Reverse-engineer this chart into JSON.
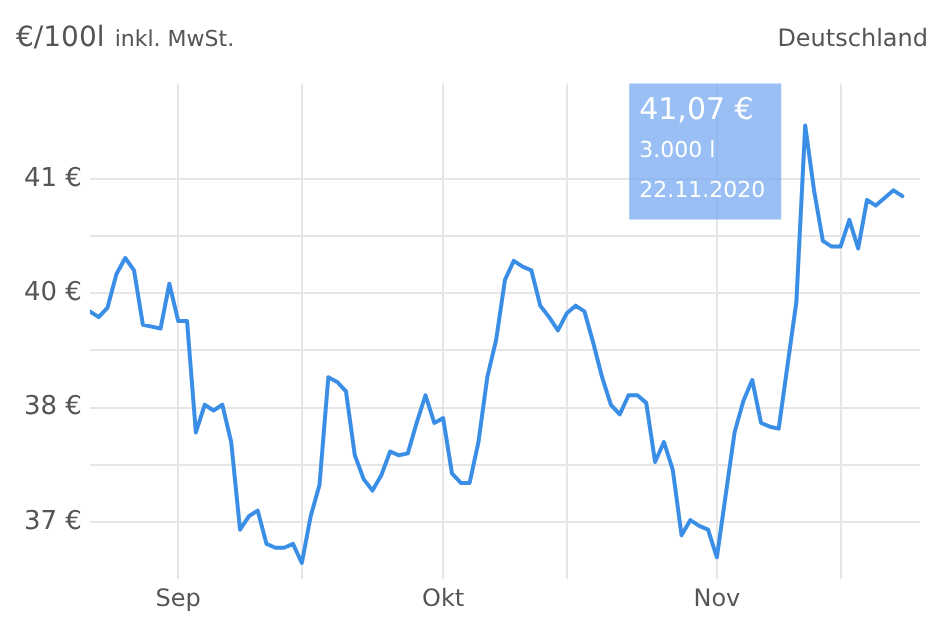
{
  "chart_data": {
    "type": "line",
    "ylabel": "€/100l",
    "subtitle": "inkl. MwSt.",
    "annotations": [
      "Deutschland",
      "41,07 €",
      "3.000 l",
      "22.11.2020"
    ],
    "x": [
      "2020-08-22",
      "2020-08-23",
      "2020-08-24",
      "2020-08-25",
      "2020-08-26",
      "2020-08-27",
      "2020-08-28",
      "2020-08-29",
      "2020-08-30",
      "2020-08-31",
      "2020-09-01",
      "2020-09-02",
      "2020-09-03",
      "2020-09-04",
      "2020-09-05",
      "2020-09-06",
      "2020-09-07",
      "2020-09-08",
      "2020-09-09",
      "2020-09-10",
      "2020-09-11",
      "2020-09-12",
      "2020-09-13",
      "2020-09-14",
      "2020-09-15",
      "2020-09-16",
      "2020-09-17",
      "2020-09-18",
      "2020-09-19",
      "2020-09-20",
      "2020-09-21",
      "2020-09-22",
      "2020-09-23",
      "2020-09-24",
      "2020-09-25",
      "2020-09-26",
      "2020-09-27",
      "2020-09-28",
      "2020-09-29",
      "2020-09-30",
      "2020-10-01",
      "2020-10-02",
      "2020-10-03",
      "2020-10-04",
      "2020-10-05",
      "2020-10-06",
      "2020-10-07",
      "2020-10-08",
      "2020-10-09",
      "2020-10-10",
      "2020-10-11",
      "2020-10-12",
      "2020-10-13",
      "2020-10-14",
      "2020-10-15",
      "2020-10-16",
      "2020-10-17",
      "2020-10-18",
      "2020-10-19",
      "2020-10-20",
      "2020-10-21",
      "2020-10-22",
      "2020-10-23",
      "2020-10-24",
      "2020-10-25",
      "2020-10-26",
      "2020-10-27",
      "2020-10-28",
      "2020-10-29",
      "2020-10-30",
      "2020-10-31",
      "2020-11-01",
      "2020-11-03",
      "2020-11-04",
      "2020-11-05",
      "2020-11-06",
      "2020-11-07",
      "2020-11-08",
      "2020-11-10",
      "2020-11-11",
      "2020-11-12",
      "2020-11-13",
      "2020-11-14",
      "2020-11-15",
      "2020-11-16",
      "2020-11-17",
      "2020-11-18",
      "2020-11-19",
      "2020-11-21",
      "2020-11-22"
    ],
    "series": [
      {
        "color": "#3a8ee6",
        "values": [
          39.41,
          39.35,
          39.45,
          39.8,
          39.97,
          39.84,
          39.27,
          39.25,
          39.23,
          39.7,
          39.31,
          39.31,
          38.14,
          38.43,
          38.37,
          38.43,
          38.04,
          37.12,
          37.26,
          37.32,
          36.97,
          36.93,
          36.93,
          36.97,
          36.77,
          37.26,
          37.59,
          38.72,
          38.67,
          38.57,
          37.9,
          37.65,
          37.53,
          37.69,
          37.94,
          37.9,
          37.92,
          38.24,
          38.53,
          38.24,
          38.29,
          37.71,
          37.61,
          37.61,
          38.04,
          38.72,
          39.11,
          39.74,
          39.94,
          39.88,
          39.84,
          39.47,
          39.35,
          39.21,
          39.39,
          39.47,
          39.41,
          39.08,
          38.72,
          38.43,
          38.33,
          38.53,
          38.53,
          38.45,
          37.83,
          38.04,
          37.75,
          37.06,
          37.22,
          37.16,
          37.12,
          36.83,
          38.14,
          38.47,
          38.69,
          38.24,
          38.2,
          38.18,
          39.51,
          41.36,
          40.68,
          40.15,
          40.09,
          40.09,
          40.37,
          40.07,
          40.58,
          40.52,
          40.68,
          40.62
        ]
      }
    ],
    "xlim": [
      "2020-08-22",
      "2020-11-24"
    ],
    "xticks": [
      {
        "value": "2020-09-01",
        "label": "Sep"
      },
      {
        "value": "2020-09-15",
        "label": null
      },
      {
        "value": "2020-10-01",
        "label": "Okt"
      },
      {
        "value": "2020-10-15",
        "label": null
      },
      {
        "value": "2020-11-01",
        "label": "Nov"
      },
      {
        "value": "2020-11-15",
        "label": null
      }
    ],
    "ylim": [
      36.6,
      41.8
    ],
    "yticks": [
      {
        "value": 37.2,
        "label": "37 €"
      },
      {
        "value": 37.8,
        "label": null
      },
      {
        "value": 38.4,
        "label": "38 €"
      },
      {
        "value": 39.0,
        "label": null
      },
      {
        "value": 39.6,
        "label": "40 €"
      },
      {
        "value": 40.2,
        "label": null
      },
      {
        "value": 40.8,
        "label": "41 €"
      }
    ],
    "grid": true,
    "legend": false,
    "marker": "none",
    "line_style": "solid"
  }
}
